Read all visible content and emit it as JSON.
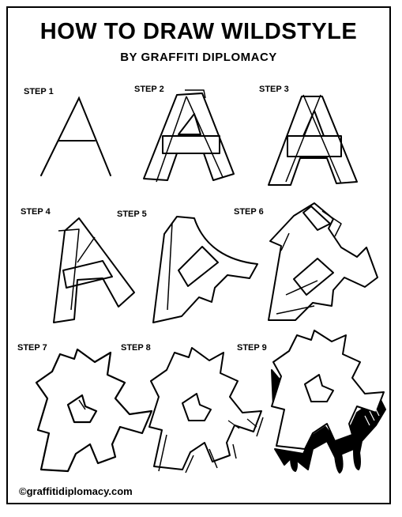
{
  "header": {
    "title": "HOW TO DRAW WILDSTYLE",
    "subtitle": "BY GRAFFITI DIPLOMACY"
  },
  "steps": [
    {
      "label": "STEP 1"
    },
    {
      "label": "STEP 2"
    },
    {
      "label": "STEP 3"
    },
    {
      "label": "STEP 4"
    },
    {
      "label": "STEP 5"
    },
    {
      "label": "STEP 6"
    },
    {
      "label": "STEP 7"
    },
    {
      "label": "STEP 8"
    },
    {
      "label": "STEP 9"
    }
  ],
  "footer": {
    "credit": "©graffitidiplomacy.com"
  },
  "colors": {
    "ink": "#000000",
    "background": "#ffffff"
  }
}
